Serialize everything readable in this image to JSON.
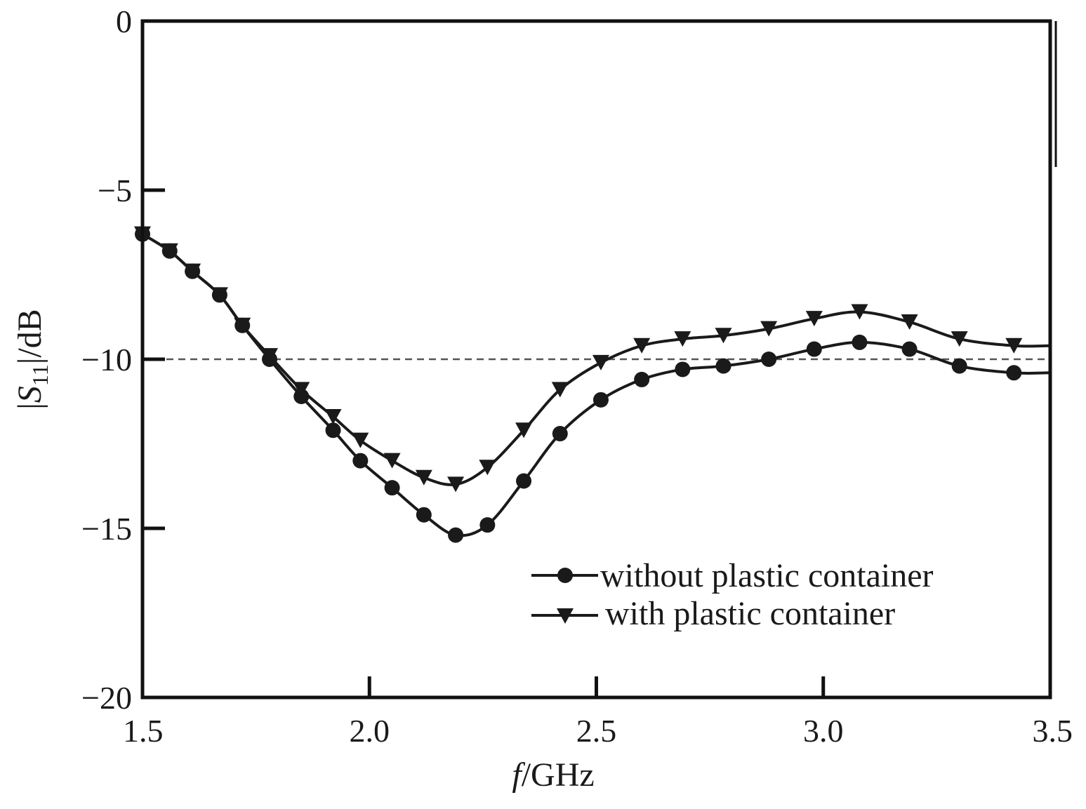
{
  "chart_data": {
    "type": "line",
    "title": "",
    "xlabel": {
      "italic": "f",
      "rest": "/GHz"
    },
    "ylabel": {
      "prefix": "|",
      "italic": "S",
      "subscript": "11",
      "suffix": "|/dB"
    },
    "xlim": [
      1.5,
      3.5
    ],
    "ylim": [
      -20,
      0
    ],
    "xticks": [
      "1.5",
      "2.0",
      "2.5",
      "3.0",
      "3.5"
    ],
    "xtick_values": [
      1.5,
      2.0,
      2.5,
      3.0,
      3.5
    ],
    "yticks": [
      "0",
      "−5",
      "−10",
      "−15",
      "−20"
    ],
    "ytick_values": [
      0,
      -5,
      -10,
      -15,
      -20
    ],
    "grid": false,
    "legend_position": "bottom-right",
    "reference_line": {
      "y": -10,
      "style": "dashed"
    },
    "colors": {
      "line": "#1a1a1a",
      "axis": "#111111",
      "reference": "#555555"
    },
    "series": [
      {
        "name": "without plastic container",
        "marker": "circle",
        "points": [
          [
            1.5,
            -6.3
          ],
          [
            1.56,
            -6.8
          ],
          [
            1.61,
            -7.4
          ],
          [
            1.67,
            -8.1
          ],
          [
            1.72,
            -9.0
          ],
          [
            1.78,
            -10.0
          ],
          [
            1.85,
            -11.1
          ],
          [
            1.92,
            -12.1
          ],
          [
            1.98,
            -13.0
          ],
          [
            2.05,
            -13.8
          ],
          [
            2.12,
            -14.6
          ],
          [
            2.19,
            -15.2
          ],
          [
            2.26,
            -14.9
          ],
          [
            2.34,
            -13.6
          ],
          [
            2.42,
            -12.2
          ],
          [
            2.51,
            -11.2
          ],
          [
            2.6,
            -10.6
          ],
          [
            2.69,
            -10.3
          ],
          [
            2.78,
            -10.2
          ],
          [
            2.88,
            -10.0
          ],
          [
            2.98,
            -9.7
          ],
          [
            3.08,
            -9.5
          ],
          [
            3.19,
            -9.7
          ],
          [
            3.3,
            -10.2
          ],
          [
            3.42,
            -10.4
          ],
          [
            3.5,
            -10.4
          ]
        ]
      },
      {
        "name": "with plastic container",
        "marker": "triangle-down",
        "points": [
          [
            1.5,
            -6.3
          ],
          [
            1.56,
            -6.8
          ],
          [
            1.61,
            -7.4
          ],
          [
            1.67,
            -8.1
          ],
          [
            1.72,
            -9.0
          ],
          [
            1.78,
            -9.9
          ],
          [
            1.85,
            -10.9
          ],
          [
            1.92,
            -11.7
          ],
          [
            1.98,
            -12.4
          ],
          [
            2.05,
            -13.0
          ],
          [
            2.12,
            -13.5
          ],
          [
            2.19,
            -13.7
          ],
          [
            2.26,
            -13.2
          ],
          [
            2.34,
            -12.1
          ],
          [
            2.42,
            -10.9
          ],
          [
            2.51,
            -10.1
          ],
          [
            2.6,
            -9.6
          ],
          [
            2.69,
            -9.4
          ],
          [
            2.78,
            -9.3
          ],
          [
            2.88,
            -9.1
          ],
          [
            2.98,
            -8.8
          ],
          [
            3.08,
            -8.6
          ],
          [
            3.19,
            -8.9
          ],
          [
            3.3,
            -9.4
          ],
          [
            3.42,
            -9.6
          ],
          [
            3.5,
            -9.6
          ]
        ]
      }
    ]
  }
}
